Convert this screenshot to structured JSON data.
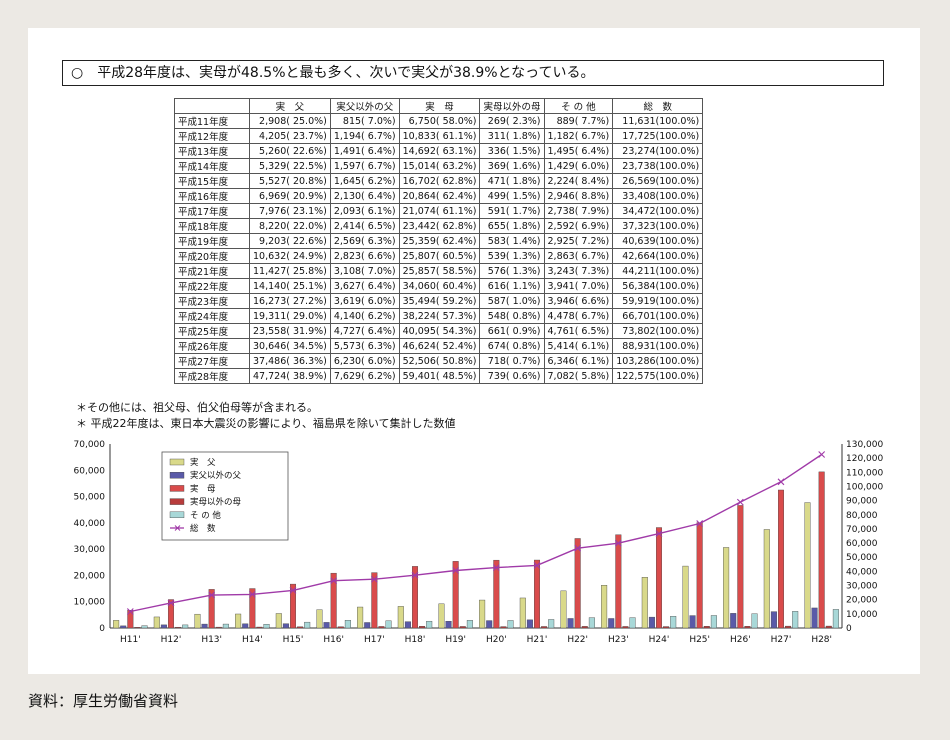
{
  "summary": "○　平成28年度は、実母が48.5%と最も多く、次いで実父が38.9%となっている。",
  "table": {
    "headers": [
      "実　父",
      "実父以外の父",
      "実　母",
      "実母以外の母",
      "そ の 他",
      "総　数"
    ],
    "rows": [
      {
        "label": "平成11年度",
        "cells": [
          "2,908( 25.0%)",
          "815( 7.0%)",
          "6,750( 58.0%)",
          "269( 2.3%)",
          "889( 7.7%)",
          "11,631(100.0%)"
        ]
      },
      {
        "label": "平成12年度",
        "cells": [
          "4,205( 23.7%)",
          "1,194( 6.7%)",
          "10,833( 61.1%)",
          "311( 1.8%)",
          "1,182( 6.7%)",
          "17,725(100.0%)"
        ]
      },
      {
        "label": "平成13年度",
        "cells": [
          "5,260( 22.6%)",
          "1,491( 6.4%)",
          "14,692( 63.1%)",
          "336( 1.5%)",
          "1,495( 6.4%)",
          "23,274(100.0%)"
        ]
      },
      {
        "label": "平成14年度",
        "cells": [
          "5,329( 22.5%)",
          "1,597( 6.7%)",
          "15,014( 63.2%)",
          "369( 1.6%)",
          "1,429( 6.0%)",
          "23,738(100.0%)"
        ]
      },
      {
        "label": "平成15年度",
        "cells": [
          "5,527( 20.8%)",
          "1,645( 6.2%)",
          "16,702( 62.8%)",
          "471( 1.8%)",
          "2,224( 8.4%)",
          "26,569(100.0%)"
        ]
      },
      {
        "label": "平成16年度",
        "cells": [
          "6,969( 20.9%)",
          "2,130( 6.4%)",
          "20,864( 62.4%)",
          "499( 1.5%)",
          "2,946( 8.8%)",
          "33,408(100.0%)"
        ]
      },
      {
        "label": "平成17年度",
        "cells": [
          "7,976( 23.1%)",
          "2,093( 6.1%)",
          "21,074( 61.1%)",
          "591( 1.7%)",
          "2,738( 7.9%)",
          "34,472(100.0%)"
        ]
      },
      {
        "label": "平成18年度",
        "cells": [
          "8,220( 22.0%)",
          "2,414( 6.5%)",
          "23,442( 62.8%)",
          "655( 1.8%)",
          "2,592( 6.9%)",
          "37,323(100.0%)"
        ]
      },
      {
        "label": "平成19年度",
        "cells": [
          "9,203( 22.6%)",
          "2,569( 6.3%)",
          "25,359( 62.4%)",
          "583( 1.4%)",
          "2,925( 7.2%)",
          "40,639(100.0%)"
        ]
      },
      {
        "label": "平成20年度",
        "cells": [
          "10,632( 24.9%)",
          "2,823( 6.6%)",
          "25,807( 60.5%)",
          "539( 1.3%)",
          "2,863( 6.7%)",
          "42,664(100.0%)"
        ]
      },
      {
        "label": "平成21年度",
        "cells": [
          "11,427( 25.8%)",
          "3,108( 7.0%)",
          "25,857( 58.5%)",
          "576( 1.3%)",
          "3,243( 7.3%)",
          "44,211(100.0%)"
        ]
      },
      {
        "label": "平成22年度",
        "cells": [
          "14,140( 25.1%)",
          "3,627( 6.4%)",
          "34,060( 60.4%)",
          "616( 1.1%)",
          "3,941( 7.0%)",
          "56,384(100.0%)"
        ]
      },
      {
        "label": "平成23年度",
        "cells": [
          "16,273( 27.2%)",
          "3,619( 6.0%)",
          "35,494( 59.2%)",
          "587( 1.0%)",
          "3,946( 6.6%)",
          "59,919(100.0%)"
        ]
      },
      {
        "label": "平成24年度",
        "cells": [
          "19,311( 29.0%)",
          "4,140( 6.2%)",
          "38,224( 57.3%)",
          "548( 0.8%)",
          "4,478( 6.7%)",
          "66,701(100.0%)"
        ]
      },
      {
        "label": "平成25年度",
        "cells": [
          "23,558( 31.9%)",
          "4,727( 6.4%)",
          "40,095( 54.3%)",
          "661( 0.9%)",
          "4,761( 6.5%)",
          "73,802(100.0%)"
        ]
      },
      {
        "label": "平成26年度",
        "cells": [
          "30,646( 34.5%)",
          "5,573( 6.3%)",
          "46,624( 52.4%)",
          "674( 0.8%)",
          "5,414( 6.1%)",
          "88,931(100.0%)"
        ]
      },
      {
        "label": "平成27年度",
        "cells": [
          "37,486( 36.3%)",
          "6,230( 6.0%)",
          "52,506( 50.8%)",
          "718( 0.7%)",
          "6,346( 6.1%)",
          "103,286(100.0%)"
        ]
      },
      {
        "label": "平成28年度",
        "cells": [
          "47,724( 38.9%)",
          "7,629( 6.2%)",
          "59,401( 48.5%)",
          "739( 0.6%)",
          "7,082( 5.8%)",
          "122,575(100.0%)"
        ]
      }
    ]
  },
  "notes": [
    "＊その他には、祖父母、伯父伯母等が含まれる。",
    "＊ 平成22年度は、東日本大震災の影響により、福島県を除いて集計した数値"
  ],
  "source": "資料：厚生労働省資料",
  "chart_data": {
    "type": "bar",
    "categories": [
      "H11'",
      "H12'",
      "H13'",
      "H14'",
      "H15'",
      "H16'",
      "H17'",
      "H18'",
      "H19'",
      "H20'",
      "H21'",
      "H22'",
      "H23'",
      "H24'",
      "H25'",
      "H26'",
      "H27'",
      "H28'"
    ],
    "series": [
      {
        "name": "実　父",
        "color": "#d9d98a",
        "values": [
          2908,
          4205,
          5260,
          5329,
          5527,
          6969,
          7976,
          8220,
          9203,
          10632,
          11427,
          14140,
          16273,
          19311,
          23558,
          30646,
          37486,
          47724
        ]
      },
      {
        "name": "実父以外の父",
        "color": "#5a5aa8",
        "values": [
          815,
          1194,
          1491,
          1597,
          1645,
          2130,
          2093,
          2414,
          2569,
          2823,
          3108,
          3627,
          3619,
          4140,
          4727,
          5573,
          6230,
          7629
        ]
      },
      {
        "name": "実　母",
        "color": "#d94b4b",
        "values": [
          6750,
          10833,
          14692,
          15014,
          16702,
          20864,
          21074,
          23442,
          25359,
          25807,
          25857,
          34060,
          35494,
          38224,
          40095,
          46624,
          52506,
          59401
        ]
      },
      {
        "name": "実母以外の母",
        "color": "#b83c3c",
        "values": [
          269,
          311,
          336,
          369,
          471,
          499,
          591,
          655,
          583,
          539,
          576,
          616,
          587,
          548,
          661,
          674,
          718,
          739
        ]
      },
      {
        "name": "そ の 他",
        "color": "#a8d8d8",
        "values": [
          889,
          1182,
          1495,
          1429,
          2224,
          2946,
          2738,
          2592,
          2925,
          2863,
          3243,
          3941,
          3946,
          4478,
          4761,
          5414,
          6346,
          7082
        ]
      }
    ],
    "line_series": {
      "name": "総　数",
      "color": "#a03aa8",
      "axis": "right",
      "values": [
        11631,
        17725,
        23274,
        23738,
        26569,
        33408,
        34472,
        37323,
        40639,
        42664,
        44211,
        56384,
        59919,
        66701,
        73802,
        88931,
        103286,
        122575
      ]
    },
    "ylim_left": [
      0,
      70000
    ],
    "ylim_right": [
      0,
      130000
    ],
    "yticks_left": [
      "70,000",
      "60,000",
      "50,000",
      "40,000",
      "30,000",
      "20,000",
      "10,000",
      "0"
    ],
    "yticks_right": [
      "130,000",
      "120,000",
      "110,000",
      "100,000",
      "90,000",
      "80,000",
      "70,000",
      "60,000",
      "50,000",
      "40,000",
      "30,000",
      "20,000",
      "10,000",
      "0"
    ],
    "legend": "top-left"
  }
}
